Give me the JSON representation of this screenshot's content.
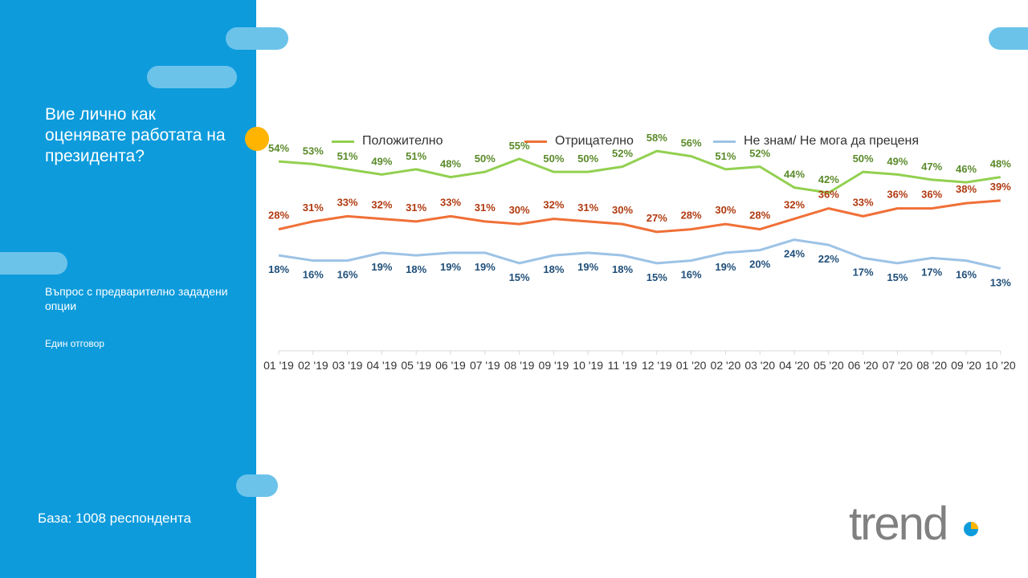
{
  "sidebar": {
    "question": "Вие лично как оценявате работата на президента?",
    "subquestion": "Въпрос с предварително зададени опции",
    "answer_type": "Един отговор",
    "base": "База: 1008 респондента"
  },
  "logo": {
    "text": "trend"
  },
  "colors": {
    "sidebar": "#0d9bdc",
    "accent_dot": "#ffb400",
    "positive_line": "#92d050",
    "positive_label": "#5a8a2a",
    "negative_line": "#f07038",
    "negative_label": "#b03a10",
    "unknown_line": "#9dc3e6",
    "unknown_label": "#1f4e79"
  },
  "chart_data": {
    "type": "line",
    "categories": [
      "01 '19",
      "02 '19",
      "03 '19",
      "04 '19",
      "05 '19",
      "06 '19",
      "07 '19",
      "08 '19",
      "09 '19",
      "10 '19",
      "11 '19",
      "12 '19",
      "01 '20",
      "02 '20",
      "03 '20",
      "04 '20",
      "05 '20",
      "06 '20",
      "07 '20",
      "08 '20",
      "09 '20",
      "10 '20"
    ],
    "series": [
      {
        "name": "Положително",
        "values": [
          54,
          53,
          51,
          49,
          51,
          48,
          50,
          55,
          50,
          50,
          52,
          58,
          56,
          51,
          52,
          44,
          42,
          50,
          49,
          47,
          46,
          48
        ]
      },
      {
        "name": "Отрицателно",
        "values": [
          28,
          31,
          33,
          32,
          31,
          33,
          31,
          30,
          32,
          31,
          30,
          27,
          28,
          30,
          28,
          32,
          36,
          33,
          36,
          36,
          38,
          39
        ]
      },
      {
        "name": "Не знам/ Не мога да преценя",
        "values": [
          18,
          16,
          16,
          19,
          18,
          19,
          19,
          15,
          18,
          19,
          18,
          15,
          16,
          19,
          20,
          24,
          22,
          17,
          15,
          17,
          16,
          13
        ]
      }
    ],
    "value_suffix": "%",
    "legend_position": "top",
    "grid": false
  }
}
